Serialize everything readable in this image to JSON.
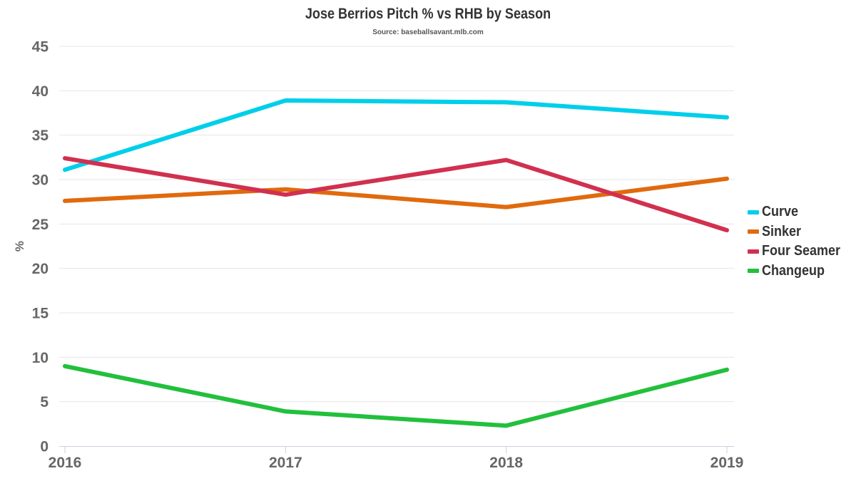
{
  "chart_data": {
    "type": "line",
    "title": "Jose Berrios Pitch % vs RHB by Season",
    "subtitle": "Source: baseballsavant.mlb.com",
    "xlabel": "",
    "ylabel": "%",
    "categories": [
      "2016",
      "2017",
      "2018",
      "2019"
    ],
    "ylim": [
      0,
      45
    ],
    "yticks": [
      0,
      5,
      10,
      15,
      20,
      25,
      30,
      35,
      40,
      45
    ],
    "grid": true,
    "legend_position": "right",
    "series": [
      {
        "name": "Curve",
        "color": "#00CFEA",
        "values": [
          31.1,
          38.9,
          38.7,
          37.0
        ]
      },
      {
        "name": "Sinker",
        "color": "#E06A0E",
        "values": [
          27.6,
          28.9,
          26.9,
          30.1
        ]
      },
      {
        "name": "Four Seamer",
        "color": "#D1304F",
        "values": [
          32.4,
          28.3,
          32.2,
          24.3
        ]
      },
      {
        "name": "Changeup",
        "color": "#22C03C",
        "values": [
          9.0,
          3.9,
          2.3,
          8.6
        ]
      }
    ]
  }
}
